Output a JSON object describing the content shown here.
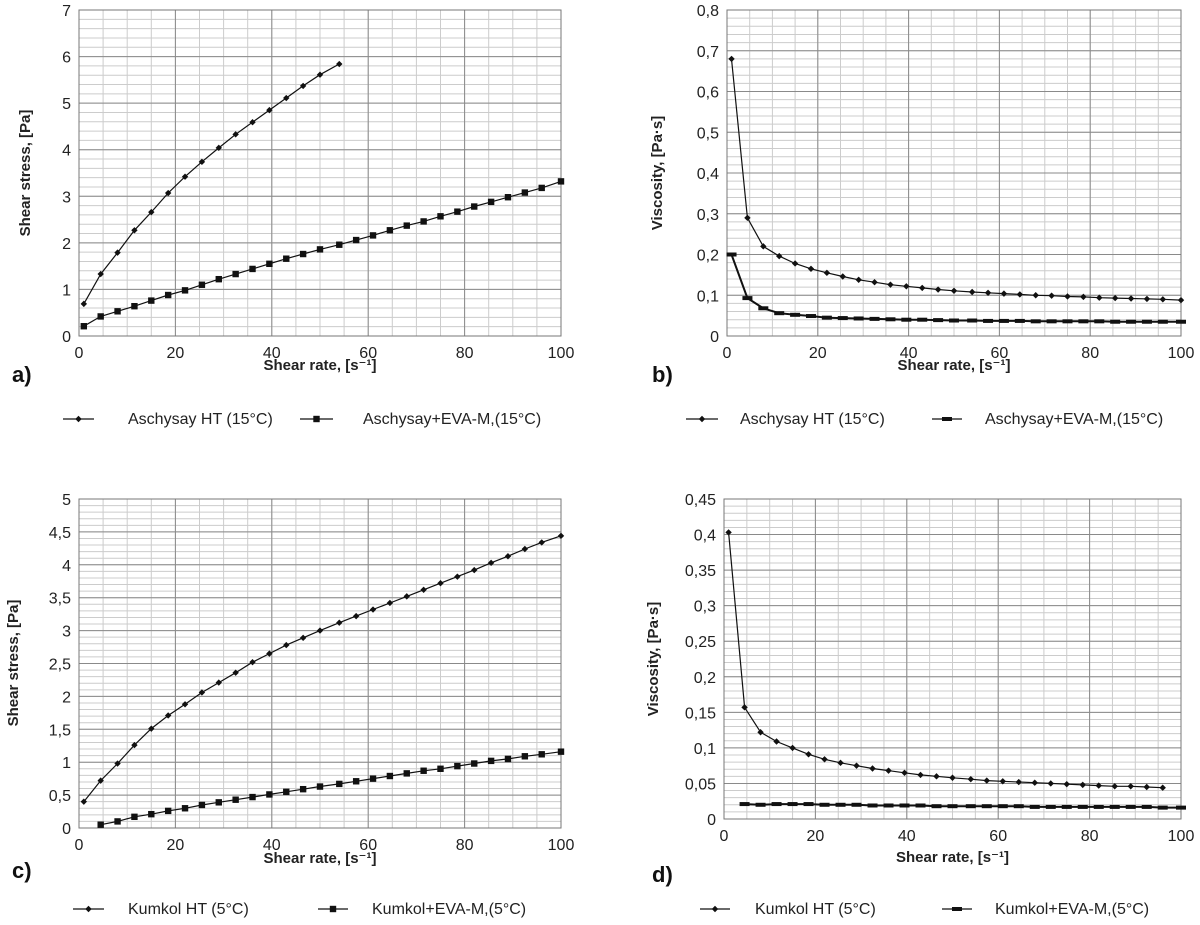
{
  "chart_data": [
    {
      "type": "line",
      "panel_label": "a)",
      "xlabel": "Shear rate, [s⁻¹]",
      "ylabel": "Shear stress, [Pa]",
      "xlim": [
        0,
        100
      ],
      "ylim": [
        0,
        7
      ],
      "xticks": [
        "0",
        "20",
        "40",
        "60",
        "80",
        "100"
      ],
      "yticks": [
        "0",
        "1",
        "2",
        "3",
        "4",
        "5",
        "6",
        "7"
      ],
      "grid": true,
      "legend": "bottom",
      "series": [
        {
          "name": "Aschysay HT (15°C)",
          "marker": "diamond",
          "x": [
            1,
            4.5,
            8,
            11.5,
            15,
            18.5,
            22,
            25.5,
            29,
            32.5,
            36,
            39.5,
            43,
            46.5,
            50,
            54
          ],
          "y": [
            0.69,
            1.33,
            1.79,
            2.27,
            2.66,
            3.07,
            3.42,
            3.74,
            4.04,
            4.33,
            4.59,
            4.85,
            5.11,
            5.37,
            5.61,
            5.84
          ]
        },
        {
          "name": "Aschysay+EVA-M,(15°C)",
          "marker": "square",
          "x": [
            1,
            4.5,
            8,
            11.5,
            15,
            18.5,
            22,
            25.5,
            29,
            32.5,
            36,
            39.5,
            43,
            46.5,
            50,
            54,
            57.5,
            61,
            64.5,
            68,
            71.5,
            75,
            78.5,
            82,
            85.5,
            89,
            92.5,
            96,
            100
          ],
          "y": [
            0.21,
            0.42,
            0.53,
            0.64,
            0.76,
            0.88,
            0.98,
            1.1,
            1.22,
            1.33,
            1.44,
            1.55,
            1.66,
            1.76,
            1.86,
            1.96,
            2.06,
            2.16,
            2.27,
            2.37,
            2.46,
            2.57,
            2.67,
            2.78,
            2.88,
            2.98,
            3.08,
            3.18,
            3.32
          ]
        }
      ]
    },
    {
      "type": "line",
      "panel_label": "b)",
      "xlabel": "Shear rate, [s⁻¹]",
      "ylabel": "Viscosity, [Pa·s]",
      "xlim": [
        0,
        100
      ],
      "ylim": [
        0,
        0.8
      ],
      "xticks": [
        "0",
        "20",
        "40",
        "60",
        "80",
        "100"
      ],
      "yticks": [
        "0",
        "0,1",
        "0,2",
        "0,3",
        "0,4",
        "0,5",
        "0,6",
        "0,7",
        "0,8"
      ],
      "grid": true,
      "legend": "bottom",
      "series": [
        {
          "name": "Aschysay HT (15°C)",
          "marker": "diamond",
          "x": [
            1,
            4.5,
            8,
            11.5,
            15,
            18.5,
            22,
            25.5,
            29,
            32.5,
            36,
            39.5,
            43,
            46.5,
            50,
            54,
            57.5,
            61,
            64.5,
            68,
            71.5,
            75,
            78.5,
            82,
            85.5,
            89,
            92.5,
            96,
            100
          ],
          "y": [
            0.68,
            0.29,
            0.22,
            0.196,
            0.178,
            0.165,
            0.155,
            0.146,
            0.138,
            0.132,
            0.126,
            0.122,
            0.118,
            0.114,
            0.111,
            0.108,
            0.106,
            0.104,
            0.102,
            0.1,
            0.099,
            0.097,
            0.096,
            0.094,
            0.093,
            0.092,
            0.091,
            0.09,
            0.088
          ]
        },
        {
          "name": "Aschysay+EVA-M,(15°C)",
          "marker": "dash",
          "x": [
            1,
            4.5,
            8,
            11.5,
            15,
            18.5,
            22,
            25.5,
            29,
            32.5,
            36,
            39.5,
            43,
            46.5,
            50,
            54,
            57.5,
            61,
            64.5,
            68,
            71.5,
            75,
            78.5,
            82,
            85.5,
            89,
            92.5,
            96,
            100
          ],
          "y": [
            0.2,
            0.093,
            0.068,
            0.056,
            0.052,
            0.049,
            0.045,
            0.044,
            0.043,
            0.042,
            0.041,
            0.04,
            0.04,
            0.039,
            0.038,
            0.038,
            0.037,
            0.037,
            0.037,
            0.036,
            0.036,
            0.036,
            0.036,
            0.036,
            0.035,
            0.035,
            0.035,
            0.035,
            0.035
          ]
        }
      ]
    },
    {
      "type": "line",
      "panel_label": "c)",
      "xlabel": "Shear rate, [s⁻¹]",
      "ylabel": "Shear stress, [Pa]",
      "xlim": [
        0,
        100
      ],
      "ylim": [
        0,
        5
      ],
      "xticks": [
        "0",
        "20",
        "40",
        "60",
        "80",
        "100"
      ],
      "yticks": [
        "0",
        "0,5",
        "1",
        "1,5",
        "2",
        "2,5",
        "3",
        "3,5",
        "4",
        "4,5",
        "5"
      ],
      "grid": true,
      "legend": "bottom",
      "series": [
        {
          "name": "Kumkol HT (5°C)",
          "marker": "diamond",
          "x": [
            1,
            4.5,
            8,
            11.5,
            15,
            18.5,
            22,
            25.5,
            29,
            32.5,
            36,
            39.5,
            43,
            46.5,
            50,
            54,
            57.5,
            61,
            64.5,
            68,
            71.5,
            75,
            78.5,
            82,
            85.5,
            89,
            92.5,
            96,
            100
          ],
          "y": [
            0.4,
            0.72,
            0.98,
            1.26,
            1.51,
            1.71,
            1.88,
            2.06,
            2.21,
            2.36,
            2.52,
            2.65,
            2.78,
            2.89,
            3.0,
            3.12,
            3.22,
            3.32,
            3.42,
            3.52,
            3.62,
            3.72,
            3.82,
            3.92,
            4.03,
            4.13,
            4.24,
            4.34,
            4.44
          ]
        },
        {
          "name": "Kumkol+EVA-M,(5°C)",
          "marker": "square",
          "x": [
            4.5,
            8,
            11.5,
            15,
            18.5,
            22,
            25.5,
            29,
            32.5,
            36,
            39.5,
            43,
            46.5,
            50,
            54,
            57.5,
            61,
            64.5,
            68,
            71.5,
            75,
            78.5,
            82,
            85.5,
            89,
            92.5,
            96,
            100
          ],
          "y": [
            0.05,
            0.1,
            0.17,
            0.21,
            0.26,
            0.3,
            0.35,
            0.39,
            0.43,
            0.47,
            0.51,
            0.55,
            0.59,
            0.63,
            0.67,
            0.71,
            0.75,
            0.79,
            0.83,
            0.87,
            0.9,
            0.94,
            0.98,
            1.02,
            1.05,
            1.09,
            1.12,
            1.16
          ]
        }
      ]
    },
    {
      "type": "line",
      "panel_label": "d)",
      "xlabel": "Shear rate, [s⁻¹]",
      "ylabel": "Viscosity, [Pa·s]",
      "xlim": [
        0,
        100
      ],
      "ylim": [
        0,
        0.45
      ],
      "xticks": [
        "0",
        "20",
        "40",
        "60",
        "80",
        "100"
      ],
      "yticks": [
        "0",
        "0,05",
        "0,1",
        "0,15",
        "0,2",
        "0,25",
        "0,3",
        "0,35",
        "0,4",
        "0,45"
      ],
      "grid": true,
      "legend": "bottom",
      "series": [
        {
          "name": "Kumkol HT (5°C)",
          "marker": "diamond",
          "x": [
            1,
            4.5,
            8,
            11.5,
            15,
            18.5,
            22,
            25.5,
            29,
            32.5,
            36,
            39.5,
            43,
            46.5,
            50,
            54,
            57.5,
            61,
            64.5,
            68,
            71.5,
            75,
            78.5,
            82,
            85.5,
            89,
            92.5,
            96
          ],
          "y": [
            0.403,
            0.157,
            0.122,
            0.109,
            0.1,
            0.091,
            0.084,
            0.079,
            0.075,
            0.071,
            0.068,
            0.065,
            0.062,
            0.06,
            0.058,
            0.056,
            0.054,
            0.053,
            0.052,
            0.051,
            0.05,
            0.049,
            0.048,
            0.047,
            0.046,
            0.046,
            0.045,
            0.044
          ]
        },
        {
          "name": "Kumkol+EVA-M,(5°C)",
          "marker": "dash",
          "x": [
            4.5,
            8,
            11.5,
            15,
            18.5,
            22,
            25.5,
            29,
            32.5,
            36,
            39.5,
            43,
            46.5,
            50,
            54,
            57.5,
            61,
            64.5,
            68,
            71.5,
            75,
            78.5,
            82,
            85.5,
            89,
            92.5,
            96,
            100
          ],
          "y": [
            0.021,
            0.02,
            0.021,
            0.021,
            0.021,
            0.02,
            0.02,
            0.02,
            0.019,
            0.019,
            0.019,
            0.019,
            0.018,
            0.018,
            0.018,
            0.018,
            0.018,
            0.018,
            0.017,
            0.017,
            0.017,
            0.017,
            0.017,
            0.017,
            0.017,
            0.017,
            0.016,
            0.016
          ]
        }
      ]
    }
  ]
}
